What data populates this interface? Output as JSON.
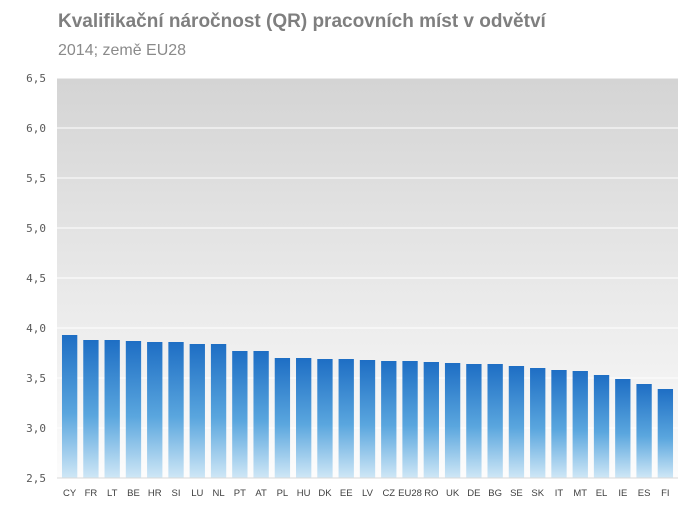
{
  "chart_data": {
    "type": "bar",
    "title": "Kvalifikační náročnost (QR)  pracovních míst v odvětví",
    "subtitle": "2014; země EU28",
    "xlabel": "",
    "ylabel": "",
    "ylim": [
      2.5,
      6.5
    ],
    "yticks": [
      "2,5",
      "3,0",
      "3,5",
      "4,0",
      "4,5",
      "5,0",
      "5,5",
      "6,0",
      "6,5"
    ],
    "grid": true,
    "categories": [
      "CY",
      "FR",
      "LT",
      "BE",
      "HR",
      "SI",
      "LU",
      "NL",
      "PT",
      "AT",
      "PL",
      "HU",
      "DK",
      "EE",
      "LV",
      "CZ",
      "EU28",
      "RO",
      "UK",
      "DE",
      "BG",
      "SE",
      "SK",
      "IT",
      "MT",
      "EL",
      "IE",
      "ES",
      "FI"
    ],
    "values": [
      3.93,
      3.88,
      3.88,
      3.87,
      3.86,
      3.86,
      3.84,
      3.84,
      3.77,
      3.77,
      3.7,
      3.7,
      3.69,
      3.69,
      3.68,
      3.67,
      3.67,
      3.66,
      3.65,
      3.64,
      3.64,
      3.62,
      3.6,
      3.58,
      3.57,
      3.53,
      3.49,
      3.44,
      3.39
    ],
    "colors": {
      "bar_top": "#1e6ec4",
      "bar_bottom": "#cfe7f6",
      "plot_top": "#d4d4d4",
      "plot_bottom": "#fcfcfc",
      "grid": "#ffffff"
    }
  }
}
